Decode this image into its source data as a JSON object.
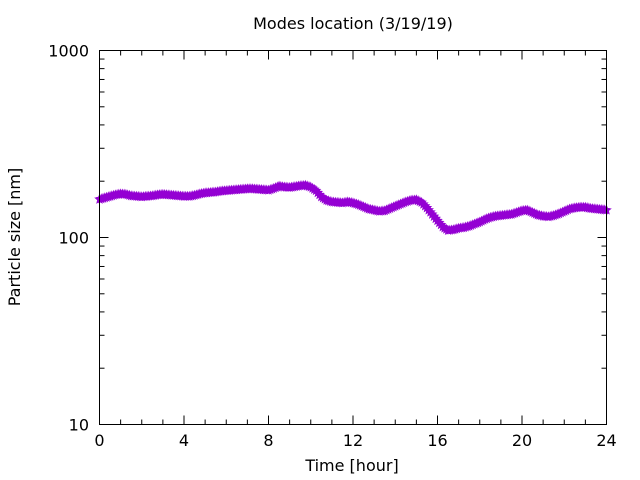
{
  "chart_data": {
    "type": "scatter",
    "title": "Modes location (3/19/19)",
    "xlabel": "Time [hour]",
    "ylabel": "Particle size [nm]",
    "xlim": [
      0,
      24
    ],
    "ylim": [
      10,
      1000
    ],
    "yscale": "log",
    "grid": false,
    "legend": "none",
    "marker_color": "#9400d3",
    "x_ticks": [
      "0",
      "4",
      "8",
      "12",
      "16",
      "20",
      "24"
    ],
    "y_ticks": [
      "10",
      "100",
      "1000"
    ],
    "series": [
      {
        "points": [
          [
            0.0,
            160
          ],
          [
            0.25,
            163
          ],
          [
            0.5,
            166
          ],
          [
            0.75,
            169
          ],
          [
            1.0,
            171
          ],
          [
            1.25,
            170
          ],
          [
            1.5,
            167
          ],
          [
            1.75,
            166
          ],
          [
            2.0,
            165
          ],
          [
            2.25,
            166
          ],
          [
            2.5,
            167
          ],
          [
            2.75,
            169
          ],
          [
            3.0,
            170
          ],
          [
            3.25,
            169
          ],
          [
            3.5,
            168
          ],
          [
            3.75,
            167
          ],
          [
            4.0,
            166
          ],
          [
            4.25,
            166
          ],
          [
            4.5,
            168
          ],
          [
            4.75,
            171
          ],
          [
            5.0,
            173
          ],
          [
            5.25,
            174
          ],
          [
            5.5,
            175
          ],
          [
            5.75,
            177
          ],
          [
            6.0,
            178
          ],
          [
            6.25,
            179
          ],
          [
            6.5,
            180
          ],
          [
            6.75,
            181
          ],
          [
            7.0,
            182
          ],
          [
            7.25,
            182
          ],
          [
            7.5,
            181
          ],
          [
            7.75,
            180
          ],
          [
            8.0,
            179
          ],
          [
            8.25,
            183
          ],
          [
            8.5,
            188
          ],
          [
            8.75,
            186
          ],
          [
            9.0,
            185
          ],
          [
            9.25,
            187
          ],
          [
            9.5,
            189
          ],
          [
            9.75,
            190
          ],
          [
            10.0,
            186
          ],
          [
            10.25,
            178
          ],
          [
            10.5,
            165
          ],
          [
            10.75,
            158
          ],
          [
            11.0,
            155
          ],
          [
            11.25,
            154
          ],
          [
            11.5,
            153
          ],
          [
            11.75,
            155
          ],
          [
            12.0,
            153
          ],
          [
            12.25,
            150
          ],
          [
            12.5,
            146
          ],
          [
            12.75,
            142
          ],
          [
            13.0,
            140
          ],
          [
            13.25,
            138
          ],
          [
            13.5,
            139
          ],
          [
            13.75,
            143
          ],
          [
            14.0,
            147
          ],
          [
            14.25,
            151
          ],
          [
            14.5,
            155
          ],
          [
            14.75,
            158
          ],
          [
            15.0,
            159
          ],
          [
            15.25,
            154
          ],
          [
            15.5,
            144
          ],
          [
            15.75,
            133
          ],
          [
            16.0,
            123
          ],
          [
            16.25,
            114
          ],
          [
            16.5,
            109
          ],
          [
            16.75,
            110
          ],
          [
            17.0,
            112
          ],
          [
            17.25,
            113
          ],
          [
            17.5,
            115
          ],
          [
            17.75,
            118
          ],
          [
            18.0,
            121
          ],
          [
            18.25,
            125
          ],
          [
            18.5,
            128
          ],
          [
            18.75,
            130
          ],
          [
            19.0,
            131
          ],
          [
            19.25,
            132
          ],
          [
            19.5,
            133
          ],
          [
            19.75,
            136
          ],
          [
            20.0,
            139
          ],
          [
            20.25,
            140
          ],
          [
            20.5,
            136
          ],
          [
            20.75,
            132
          ],
          [
            21.0,
            130
          ],
          [
            21.25,
            129
          ],
          [
            21.5,
            131
          ],
          [
            21.75,
            134
          ],
          [
            22.0,
            138
          ],
          [
            22.25,
            142
          ],
          [
            22.5,
            144
          ],
          [
            22.75,
            145
          ],
          [
            23.0,
            145
          ],
          [
            23.25,
            143
          ],
          [
            23.5,
            142
          ],
          [
            23.75,
            141
          ],
          [
            24.0,
            140
          ]
        ]
      }
    ]
  }
}
